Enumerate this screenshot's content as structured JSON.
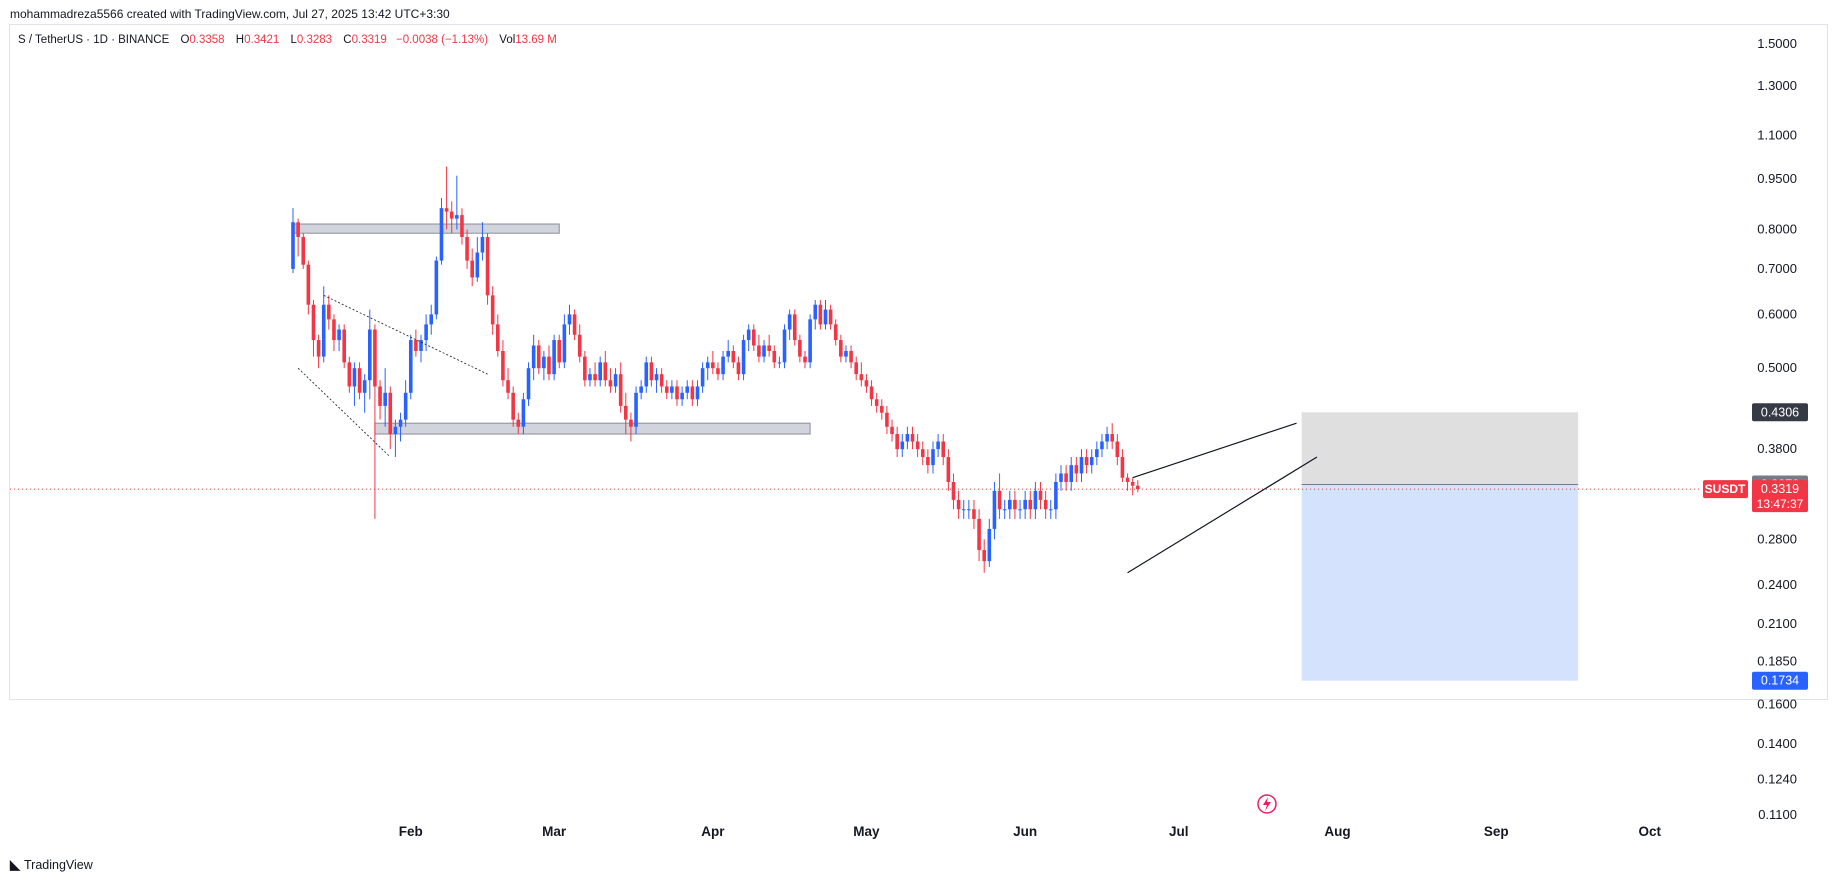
{
  "header": {
    "published_line": "mohammadreza5566 created with TradingView.com, Jul 27, 2025 13:42 UTC+3:30"
  },
  "legend": {
    "symbol": "S / TetherUS · 1D · BINANCE",
    "open_label": "O",
    "open": "0.3358",
    "high_label": "H",
    "high": "0.3421",
    "low_label": "L",
    "low": "0.3283",
    "close_label": "C",
    "close": "0.3319",
    "change": "−0.0038 (−1.13%)",
    "vol_label": "Vol",
    "vol": "13.69 M"
  },
  "footer": {
    "brand": "TradingView"
  },
  "colors": {
    "up": "#2962ff",
    "down": "#f23645",
    "zone": "#d1d4dc",
    "target_fill": "#cfdffd",
    "stop_fill": "#dcdcdc",
    "price_line": "#f23645"
  },
  "chart_data": {
    "type": "candlestick",
    "scale": "log",
    "y_ticks": [
      "1.5000",
      "1.3000",
      "1.1000",
      "0.9500",
      "0.8000",
      "0.7000",
      "0.6000",
      "0.5000",
      "0.3800",
      "0.2800",
      "0.2400",
      "0.2100",
      "0.1850",
      "0.1600",
      "0.1400",
      "0.1240",
      "0.1100"
    ],
    "x_ticks": [
      "Feb",
      "Mar",
      "Apr",
      "May",
      "Jun",
      "Jul",
      "Aug",
      "Sep",
      "Oct"
    ],
    "price_labels": [
      {
        "text": "0.4306",
        "kind": "stop",
        "color": "#363a45"
      },
      {
        "text": "0.3372",
        "kind": "entry",
        "color": "#787b86"
      },
      {
        "text": "0.3319",
        "kind": "last",
        "color": "#f23645",
        "sub": "13:47:37"
      },
      {
        "text": "0.1734",
        "kind": "target",
        "color": "#2962ff"
      }
    ],
    "symbol_tag": "SUSDT",
    "last_price": 0.3319,
    "position": {
      "entry": 0.3372,
      "stop": 0.4306,
      "target": 0.1734,
      "start": "2025-07-25",
      "end": "2025-09-17"
    },
    "zones": [
      {
        "from": "2025-01-09",
        "to": "2025-03-02",
        "low": 0.79,
        "high": 0.815
      },
      {
        "from": "2025-01-25",
        "to": "2025-04-20",
        "low": 0.4,
        "high": 0.415
      }
    ],
    "trendlines": [
      {
        "points": [
          [
            "2025-01-15",
            0.64
          ],
          [
            "2025-02-16",
            0.49
          ]
        ],
        "style": "dotted"
      },
      {
        "points": [
          [
            "2025-01-10",
            0.5
          ],
          [
            "2025-01-28",
            0.37
          ]
        ],
        "style": "dotted"
      },
      {
        "points": [
          [
            "2025-06-21",
            0.25
          ],
          [
            "2025-07-28",
            0.37
          ]
        ],
        "style": "solid"
      },
      {
        "points": [
          [
            "2025-06-22",
            0.345
          ],
          [
            "2025-07-24",
            0.415
          ]
        ],
        "style": "solid"
      }
    ],
    "candles": [
      [
        "2025-01-09",
        0.7,
        0.86,
        0.69,
        0.82
      ],
      [
        "2025-01-10",
        0.82,
        0.83,
        0.73,
        0.78
      ],
      [
        "2025-01-11",
        0.78,
        0.79,
        0.7,
        0.71
      ],
      [
        "2025-01-12",
        0.71,
        0.72,
        0.6,
        0.62
      ],
      [
        "2025-01-13",
        0.62,
        0.63,
        0.52,
        0.55
      ],
      [
        "2025-01-14",
        0.55,
        0.56,
        0.5,
        0.52
      ],
      [
        "2025-01-15",
        0.52,
        0.66,
        0.51,
        0.62
      ],
      [
        "2025-01-16",
        0.62,
        0.64,
        0.57,
        0.59
      ],
      [
        "2025-01-17",
        0.59,
        0.6,
        0.53,
        0.55
      ],
      [
        "2025-01-18",
        0.55,
        0.58,
        0.53,
        0.57
      ],
      [
        "2025-01-19",
        0.57,
        0.58,
        0.5,
        0.51
      ],
      [
        "2025-01-20",
        0.51,
        0.52,
        0.46,
        0.47
      ],
      [
        "2025-01-21",
        0.47,
        0.51,
        0.44,
        0.5
      ],
      [
        "2025-01-22",
        0.5,
        0.51,
        0.45,
        0.46
      ],
      [
        "2025-01-23",
        0.46,
        0.49,
        0.43,
        0.48
      ],
      [
        "2025-01-24",
        0.48,
        0.61,
        0.45,
        0.57
      ],
      [
        "2025-01-25",
        0.57,
        0.58,
        0.3,
        0.47
      ],
      [
        "2025-01-26",
        0.47,
        0.48,
        0.42,
        0.44
      ],
      [
        "2025-01-27",
        0.44,
        0.5,
        0.41,
        0.46
      ],
      [
        "2025-01-28",
        0.46,
        0.47,
        0.38,
        0.4
      ],
      [
        "2025-01-29",
        0.4,
        0.42,
        0.37,
        0.41
      ],
      [
        "2025-01-30",
        0.41,
        0.43,
        0.39,
        0.42
      ],
      [
        "2025-01-31",
        0.42,
        0.48,
        0.41,
        0.46
      ],
      [
        "2025-02-01",
        0.46,
        0.56,
        0.45,
        0.55
      ],
      [
        "2025-02-02",
        0.55,
        0.57,
        0.52,
        0.53
      ],
      [
        "2025-02-03",
        0.53,
        0.56,
        0.51,
        0.55
      ],
      [
        "2025-02-04",
        0.55,
        0.6,
        0.53,
        0.58
      ],
      [
        "2025-02-05",
        0.58,
        0.62,
        0.56,
        0.6
      ],
      [
        "2025-02-06",
        0.6,
        0.73,
        0.59,
        0.72
      ],
      [
        "2025-02-07",
        0.72,
        0.89,
        0.71,
        0.86
      ],
      [
        "2025-02-08",
        0.86,
        0.99,
        0.8,
        0.85
      ],
      [
        "2025-02-09",
        0.85,
        0.88,
        0.79,
        0.83
      ],
      [
        "2025-02-10",
        0.83,
        0.96,
        0.8,
        0.84
      ],
      [
        "2025-02-11",
        0.84,
        0.86,
        0.76,
        0.78
      ],
      [
        "2025-02-12",
        0.78,
        0.8,
        0.7,
        0.72
      ],
      [
        "2025-02-13",
        0.72,
        0.75,
        0.66,
        0.68
      ],
      [
        "2025-02-14",
        0.68,
        0.78,
        0.67,
        0.74
      ],
      [
        "2025-02-15",
        0.74,
        0.82,
        0.72,
        0.78
      ],
      [
        "2025-02-16",
        0.78,
        0.79,
        0.62,
        0.64
      ],
      [
        "2025-02-17",
        0.64,
        0.66,
        0.56,
        0.58
      ],
      [
        "2025-02-18",
        0.58,
        0.6,
        0.52,
        0.53
      ],
      [
        "2025-02-19",
        0.53,
        0.55,
        0.47,
        0.48
      ],
      [
        "2025-02-20",
        0.48,
        0.5,
        0.45,
        0.46
      ],
      [
        "2025-02-21",
        0.46,
        0.47,
        0.41,
        0.42
      ],
      [
        "2025-02-22",
        0.42,
        0.43,
        0.4,
        0.41
      ],
      [
        "2025-02-23",
        0.41,
        0.46,
        0.4,
        0.45
      ],
      [
        "2025-02-24",
        0.45,
        0.51,
        0.44,
        0.5
      ],
      [
        "2025-02-25",
        0.5,
        0.56,
        0.48,
        0.54
      ],
      [
        "2025-02-26",
        0.54,
        0.55,
        0.49,
        0.5
      ],
      [
        "2025-02-27",
        0.5,
        0.53,
        0.48,
        0.52
      ],
      [
        "2025-02-28",
        0.52,
        0.54,
        0.48,
        0.49
      ],
      [
        "2025-03-01",
        0.49,
        0.56,
        0.48,
        0.55
      ],
      [
        "2025-03-02",
        0.55,
        0.56,
        0.5,
        0.51
      ],
      [
        "2025-03-03",
        0.51,
        0.6,
        0.5,
        0.58
      ],
      [
        "2025-03-04",
        0.58,
        0.62,
        0.56,
        0.6
      ],
      [
        "2025-03-05",
        0.6,
        0.61,
        0.55,
        0.56
      ],
      [
        "2025-03-06",
        0.56,
        0.58,
        0.51,
        0.52
      ],
      [
        "2025-03-07",
        0.52,
        0.53,
        0.47,
        0.48
      ],
      [
        "2025-03-08",
        0.48,
        0.5,
        0.47,
        0.49
      ],
      [
        "2025-03-09",
        0.49,
        0.51,
        0.47,
        0.48
      ],
      [
        "2025-03-10",
        0.48,
        0.52,
        0.47,
        0.51
      ],
      [
        "2025-03-11",
        0.51,
        0.53,
        0.47,
        0.48
      ],
      [
        "2025-03-12",
        0.48,
        0.5,
        0.46,
        0.47
      ],
      [
        "2025-03-13",
        0.47,
        0.5,
        0.46,
        0.49
      ],
      [
        "2025-03-14",
        0.49,
        0.51,
        0.43,
        0.44
      ],
      [
        "2025-03-15",
        0.44,
        0.46,
        0.4,
        0.42
      ],
      [
        "2025-03-16",
        0.42,
        0.43,
        0.39,
        0.41
      ],
      [
        "2025-03-17",
        0.41,
        0.47,
        0.4,
        0.46
      ],
      [
        "2025-03-18",
        0.46,
        0.48,
        0.45,
        0.47
      ],
      [
        "2025-03-19",
        0.47,
        0.52,
        0.46,
        0.51
      ],
      [
        "2025-03-20",
        0.51,
        0.52,
        0.47,
        0.48
      ],
      [
        "2025-03-21",
        0.48,
        0.5,
        0.46,
        0.49
      ],
      [
        "2025-03-22",
        0.49,
        0.5,
        0.46,
        0.47
      ],
      [
        "2025-03-23",
        0.47,
        0.48,
        0.45,
        0.46
      ],
      [
        "2025-03-24",
        0.46,
        0.48,
        0.45,
        0.47
      ],
      [
        "2025-03-25",
        0.47,
        0.48,
        0.44,
        0.45
      ],
      [
        "2025-03-26",
        0.45,
        0.47,
        0.44,
        0.46
      ],
      [
        "2025-03-27",
        0.46,
        0.48,
        0.45,
        0.47
      ],
      [
        "2025-03-28",
        0.47,
        0.48,
        0.44,
        0.45
      ],
      [
        "2025-03-29",
        0.45,
        0.48,
        0.44,
        0.47
      ],
      [
        "2025-03-30",
        0.47,
        0.51,
        0.46,
        0.5
      ],
      [
        "2025-03-31",
        0.5,
        0.52,
        0.48,
        0.51
      ],
      [
        "2025-04-01",
        0.51,
        0.53,
        0.49,
        0.5
      ],
      [
        "2025-04-02",
        0.5,
        0.51,
        0.48,
        0.49
      ],
      [
        "2025-04-03",
        0.49,
        0.53,
        0.48,
        0.52
      ],
      [
        "2025-04-04",
        0.52,
        0.55,
        0.51,
        0.53
      ],
      [
        "2025-04-05",
        0.53,
        0.54,
        0.5,
        0.51
      ],
      [
        "2025-04-06",
        0.51,
        0.52,
        0.48,
        0.49
      ],
      [
        "2025-04-07",
        0.49,
        0.56,
        0.48,
        0.55
      ],
      [
        "2025-04-08",
        0.55,
        0.58,
        0.53,
        0.57
      ],
      [
        "2025-04-09",
        0.57,
        0.58,
        0.53,
        0.54
      ],
      [
        "2025-04-10",
        0.54,
        0.56,
        0.51,
        0.52
      ],
      [
        "2025-04-11",
        0.52,
        0.55,
        0.51,
        0.54
      ],
      [
        "2025-04-12",
        0.54,
        0.56,
        0.52,
        0.53
      ],
      [
        "2025-04-13",
        0.53,
        0.54,
        0.5,
        0.51
      ],
      [
        "2025-04-14",
        0.51,
        0.52,
        0.5,
        0.51
      ],
      [
        "2025-04-15",
        0.51,
        0.58,
        0.5,
        0.57
      ],
      [
        "2025-04-16",
        0.57,
        0.61,
        0.55,
        0.6
      ],
      [
        "2025-04-17",
        0.6,
        0.61,
        0.54,
        0.55
      ],
      [
        "2025-04-18",
        0.55,
        0.56,
        0.51,
        0.52
      ],
      [
        "2025-04-19",
        0.52,
        0.53,
        0.5,
        0.51
      ],
      [
        "2025-04-20",
        0.51,
        0.6,
        0.5,
        0.59
      ],
      [
        "2025-04-21",
        0.59,
        0.63,
        0.57,
        0.62
      ],
      [
        "2025-04-22",
        0.62,
        0.63,
        0.57,
        0.58
      ],
      [
        "2025-04-23",
        0.58,
        0.63,
        0.57,
        0.61
      ],
      [
        "2025-04-24",
        0.61,
        0.62,
        0.57,
        0.58
      ],
      [
        "2025-04-25",
        0.58,
        0.59,
        0.54,
        0.55
      ],
      [
        "2025-04-26",
        0.55,
        0.56,
        0.51,
        0.52
      ],
      [
        "2025-04-27",
        0.52,
        0.54,
        0.51,
        0.53
      ],
      [
        "2025-04-28",
        0.53,
        0.54,
        0.5,
        0.51
      ],
      [
        "2025-04-29",
        0.51,
        0.52,
        0.48,
        0.49
      ],
      [
        "2025-04-30",
        0.49,
        0.51,
        0.47,
        0.48
      ],
      [
        "2025-05-01",
        0.48,
        0.49,
        0.46,
        0.47
      ],
      [
        "2025-05-02",
        0.47,
        0.48,
        0.44,
        0.45
      ],
      [
        "2025-05-03",
        0.45,
        0.46,
        0.43,
        0.44
      ],
      [
        "2025-05-04",
        0.44,
        0.45,
        0.42,
        0.43
      ],
      [
        "2025-05-05",
        0.43,
        0.44,
        0.4,
        0.41
      ],
      [
        "2025-05-06",
        0.41,
        0.42,
        0.39,
        0.4
      ],
      [
        "2025-05-07",
        0.4,
        0.41,
        0.37,
        0.38
      ],
      [
        "2025-05-08",
        0.38,
        0.4,
        0.37,
        0.39
      ],
      [
        "2025-05-09",
        0.39,
        0.41,
        0.38,
        0.4
      ],
      [
        "2025-05-10",
        0.4,
        0.41,
        0.38,
        0.39
      ],
      [
        "2025-05-11",
        0.39,
        0.4,
        0.37,
        0.38
      ],
      [
        "2025-05-12",
        0.38,
        0.39,
        0.36,
        0.37
      ],
      [
        "2025-05-13",
        0.37,
        0.38,
        0.35,
        0.36
      ],
      [
        "2025-05-14",
        0.36,
        0.39,
        0.35,
        0.38
      ],
      [
        "2025-05-15",
        0.38,
        0.4,
        0.37,
        0.39
      ],
      [
        "2025-05-16",
        0.39,
        0.4,
        0.36,
        0.37
      ],
      [
        "2025-05-17",
        0.37,
        0.38,
        0.33,
        0.34
      ],
      [
        "2025-05-18",
        0.34,
        0.35,
        0.31,
        0.32
      ],
      [
        "2025-05-19",
        0.32,
        0.33,
        0.3,
        0.31
      ],
      [
        "2025-05-20",
        0.31,
        0.32,
        0.3,
        0.31
      ],
      [
        "2025-05-21",
        0.31,
        0.32,
        0.3,
        0.31
      ],
      [
        "2025-05-22",
        0.31,
        0.32,
        0.29,
        0.3
      ],
      [
        "2025-05-23",
        0.3,
        0.31,
        0.26,
        0.27
      ],
      [
        "2025-05-24",
        0.27,
        0.28,
        0.25,
        0.26
      ],
      [
        "2025-05-25",
        0.26,
        0.3,
        0.255,
        0.29
      ],
      [
        "2025-05-26",
        0.29,
        0.34,
        0.28,
        0.33
      ],
      [
        "2025-05-27",
        0.33,
        0.35,
        0.3,
        0.31
      ],
      [
        "2025-05-28",
        0.31,
        0.32,
        0.3,
        0.31
      ],
      [
        "2025-05-29",
        0.31,
        0.33,
        0.3,
        0.32
      ],
      [
        "2025-05-30",
        0.32,
        0.33,
        0.3,
        0.31
      ],
      [
        "2025-05-31",
        0.31,
        0.32,
        0.3,
        0.31
      ],
      [
        "2025-06-01",
        0.31,
        0.33,
        0.3,
        0.32
      ],
      [
        "2025-06-02",
        0.32,
        0.33,
        0.3,
        0.31
      ],
      [
        "2025-06-03",
        0.31,
        0.34,
        0.3,
        0.33
      ],
      [
        "2025-06-04",
        0.33,
        0.34,
        0.31,
        0.32
      ],
      [
        "2025-06-05",
        0.32,
        0.33,
        0.3,
        0.31
      ],
      [
        "2025-06-06",
        0.31,
        0.32,
        0.3,
        0.31
      ],
      [
        "2025-06-07",
        0.31,
        0.35,
        0.3,
        0.34
      ],
      [
        "2025-06-08",
        0.34,
        0.36,
        0.33,
        0.35
      ],
      [
        "2025-06-09",
        0.35,
        0.36,
        0.33,
        0.34
      ],
      [
        "2025-06-10",
        0.34,
        0.37,
        0.33,
        0.36
      ],
      [
        "2025-06-11",
        0.36,
        0.37,
        0.34,
        0.35
      ],
      [
        "2025-06-12",
        0.35,
        0.38,
        0.34,
        0.37
      ],
      [
        "2025-06-13",
        0.37,
        0.38,
        0.35,
        0.36
      ],
      [
        "2025-06-14",
        0.36,
        0.38,
        0.35,
        0.37
      ],
      [
        "2025-06-15",
        0.37,
        0.39,
        0.36,
        0.38
      ],
      [
        "2025-06-16",
        0.38,
        0.4,
        0.37,
        0.39
      ],
      [
        "2025-06-17",
        0.39,
        0.41,
        0.38,
        0.4
      ],
      [
        "2025-06-18",
        0.4,
        0.415,
        0.38,
        0.39
      ],
      [
        "2025-06-19",
        0.39,
        0.4,
        0.36,
        0.37
      ],
      [
        "2025-06-20",
        0.37,
        0.38,
        0.34,
        0.345
      ],
      [
        "2025-06-21",
        0.345,
        0.35,
        0.33,
        0.34
      ],
      [
        "2025-06-22",
        0.34,
        0.345,
        0.325,
        0.3358
      ],
      [
        "2025-06-23",
        0.3358,
        0.3421,
        0.3283,
        0.3319
      ]
    ]
  }
}
